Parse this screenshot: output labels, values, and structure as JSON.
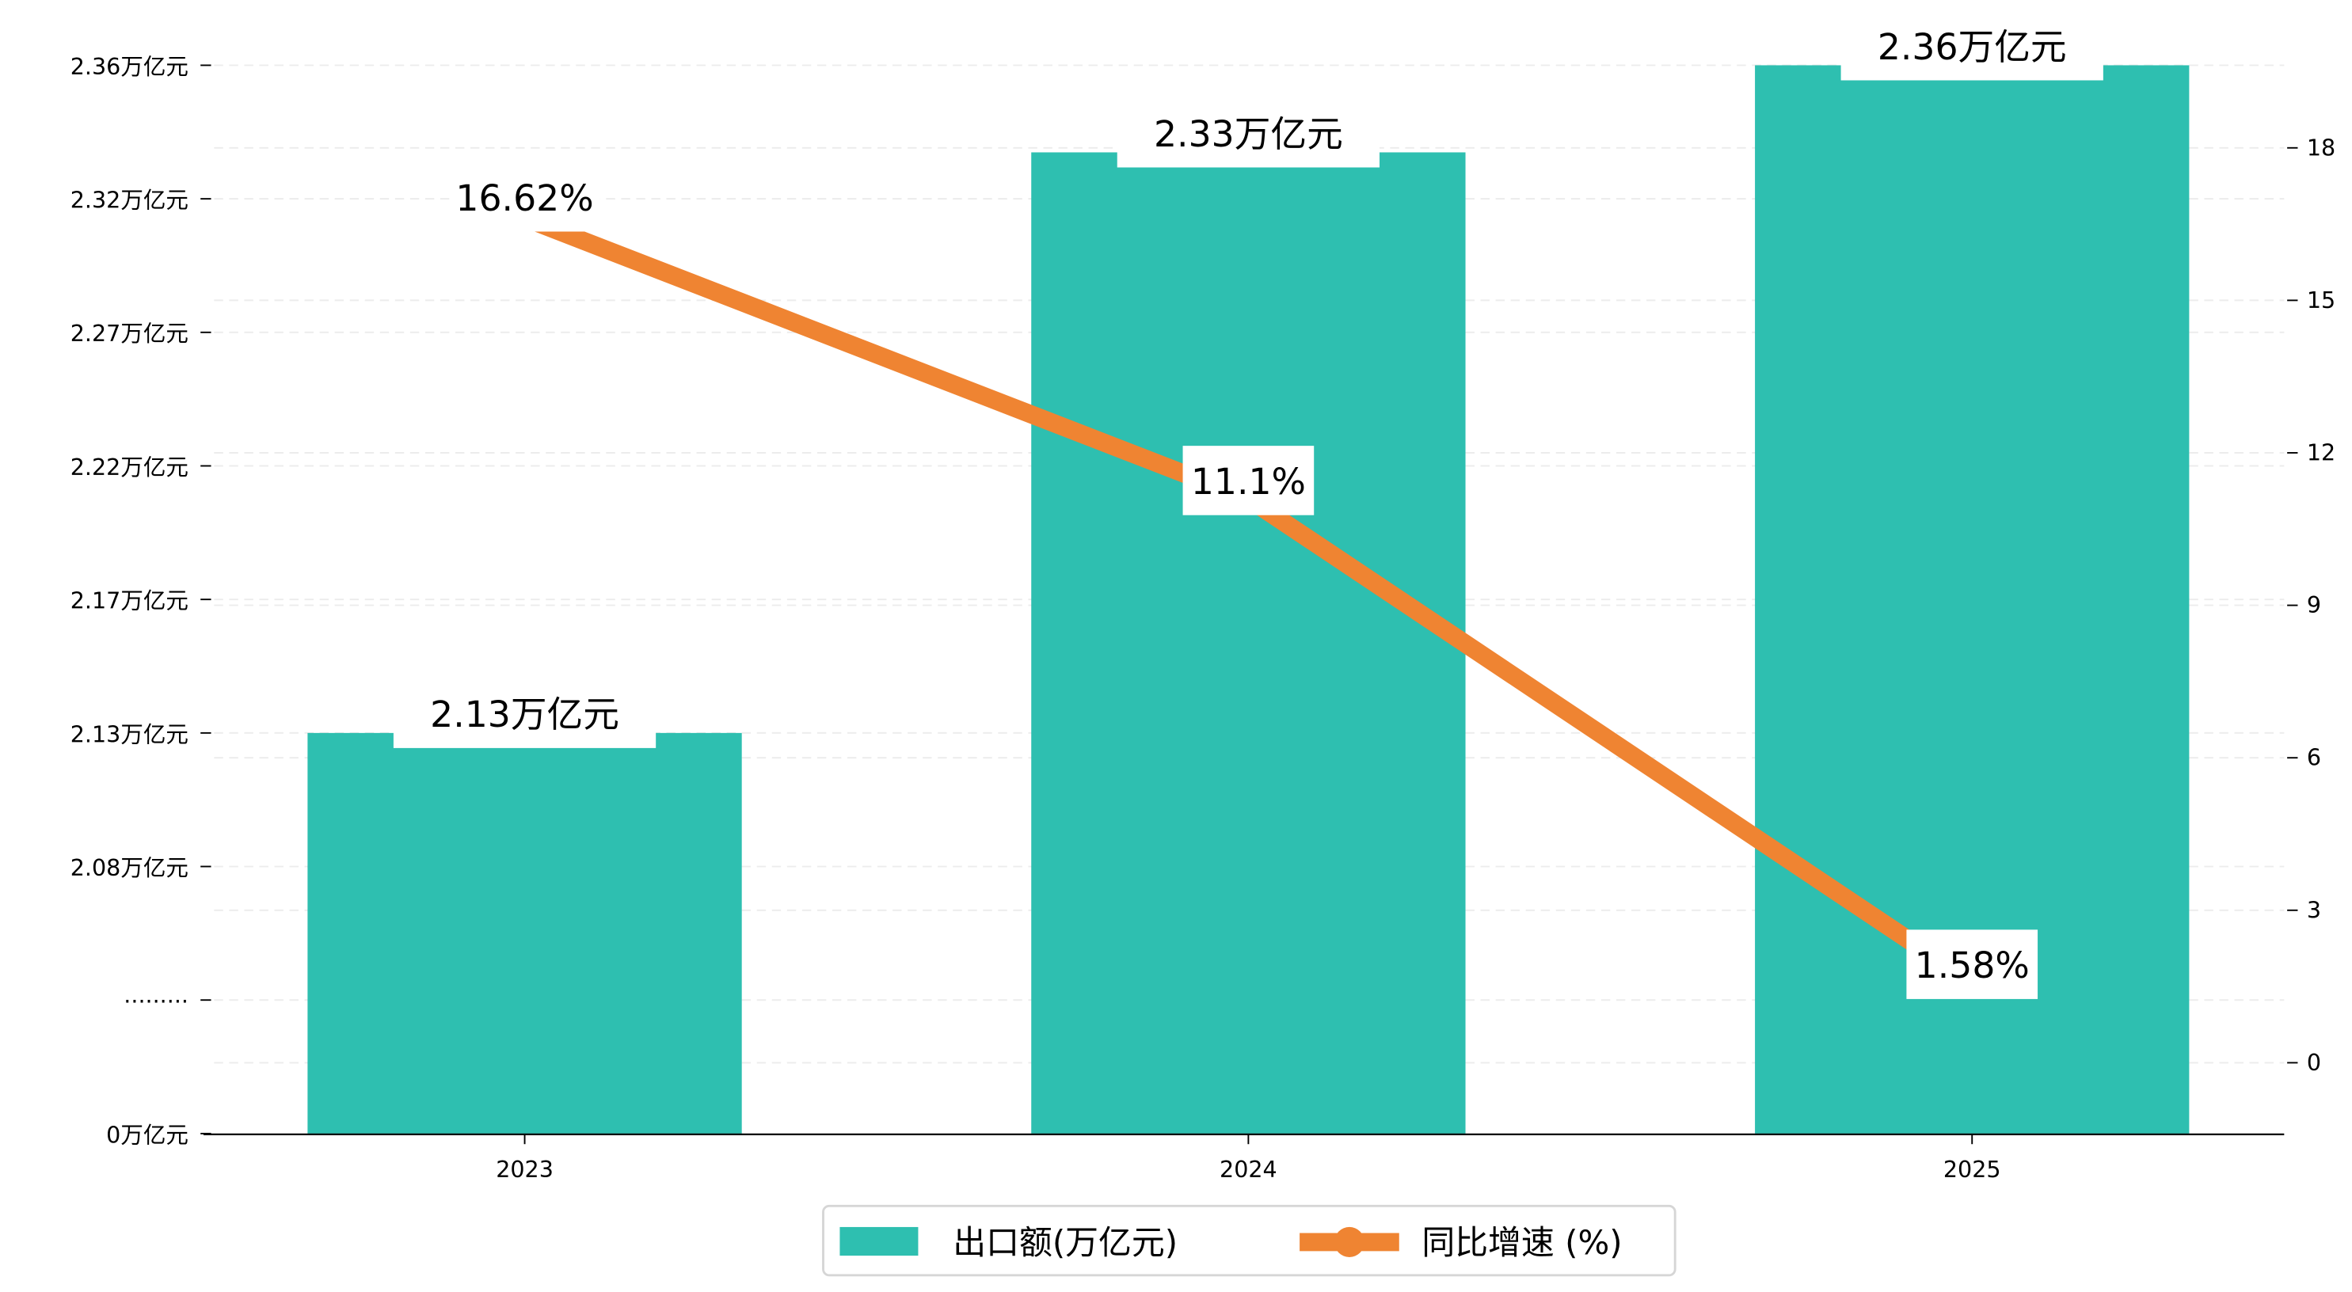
{
  "chart_data": {
    "type": "bar+line",
    "categories": [
      "2023",
      "2024",
      "2025"
    ],
    "series": [
      {
        "name": "出口额(万亿元)",
        "type": "bar",
        "axis": "left",
        "values": [
          2.13,
          2.33,
          2.36
        ],
        "labels": [
          "2.13万亿元",
          "2.33万亿元",
          "2.36万亿元"
        ],
        "color": "#2ebfb0"
      },
      {
        "name": "同比增速 (%)",
        "type": "line",
        "axis": "right",
        "values": [
          16.62,
          11.1,
          1.58
        ],
        "labels": [
          "16.62%",
          "11.1%",
          "1.58%"
        ],
        "color": "#ef8432"
      }
    ],
    "left_axis": {
      "tick_labels": [
        "0万亿元",
        "·········",
        "2.08万亿元",
        "2.13万亿元",
        "2.17万亿元",
        "2.22万亿元",
        "2.27万亿元",
        "2.32万亿元",
        "2.36万亿元"
      ],
      "broken": true
    },
    "right_axis": {
      "ticks": [
        0,
        3,
        6,
        9,
        12,
        15,
        18
      ],
      "ylim": [
        -1.4,
        19.8
      ]
    },
    "grid": true,
    "legend_position": "bottom-center"
  }
}
